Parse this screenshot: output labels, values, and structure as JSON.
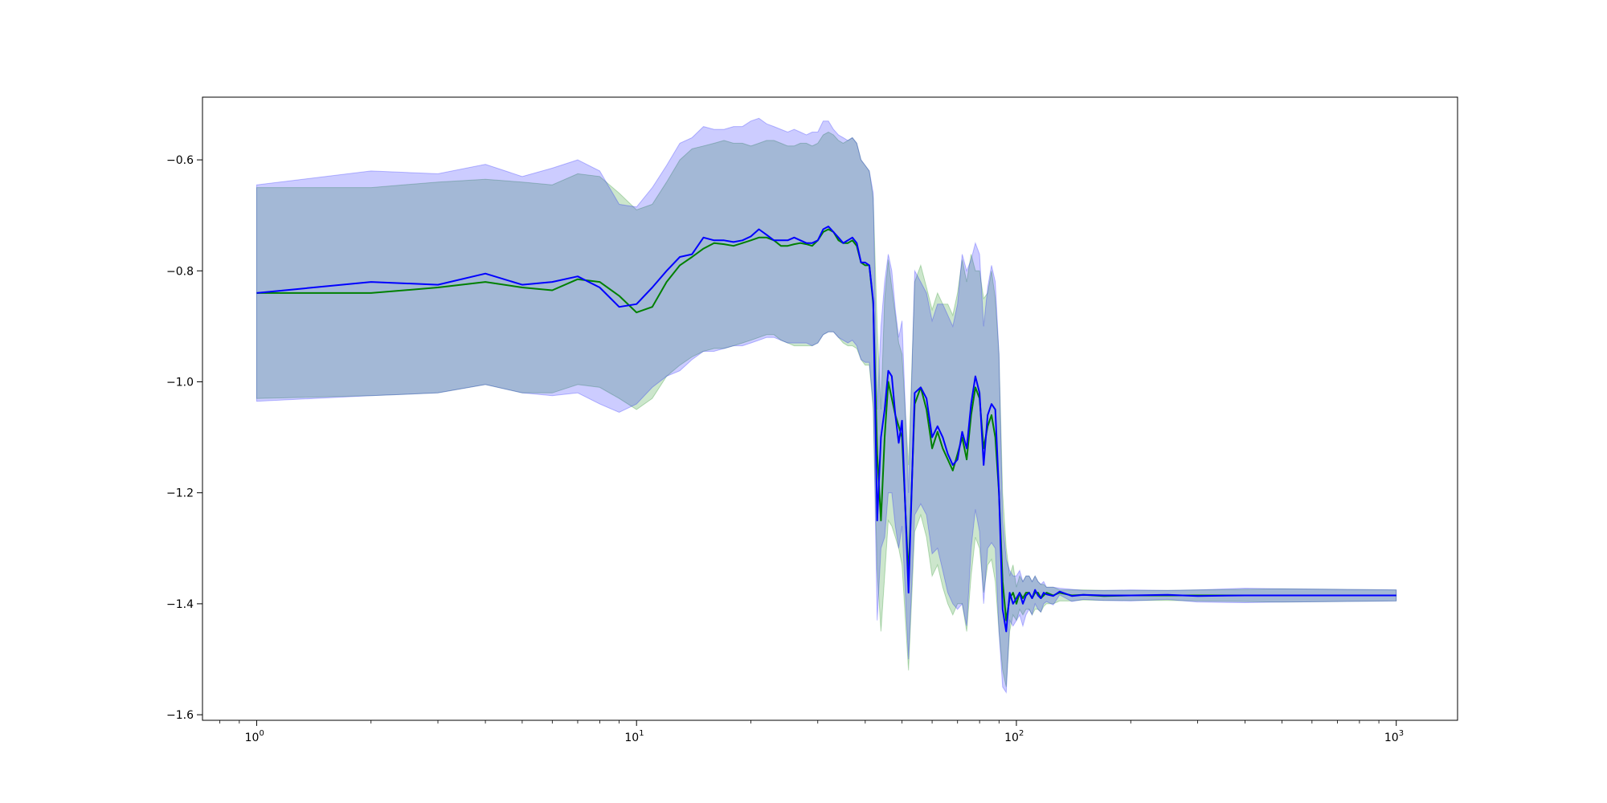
{
  "chart_data": {
    "type": "line",
    "title": "",
    "xlabel": "",
    "ylabel": "",
    "xscale": "log",
    "xlim": [
      0.72,
      1450
    ],
    "ylim": [
      -1.61,
      -0.487
    ],
    "grid": false,
    "legend": "none",
    "x_tick_labels": [
      {
        "value": 1,
        "base": "10",
        "exp": "0"
      },
      {
        "value": 10,
        "base": "10",
        "exp": "1"
      },
      {
        "value": 100,
        "base": "10",
        "exp": "2"
      },
      {
        "value": 1000,
        "base": "10",
        "exp": "3"
      }
    ],
    "y_ticks": [
      -0.6,
      -0.8,
      -1.0,
      -1.2,
      -1.4,
      -1.6
    ],
    "y_tick_labels": [
      "−0.6",
      "−0.8",
      "−1.0",
      "−1.2",
      "−1.4",
      "−1.6"
    ],
    "colors": {
      "series_a_line": "#008000",
      "series_a_band": "#008000",
      "series_b_line": "#0000ff",
      "series_b_band": "#0000ff"
    },
    "series": [
      {
        "color": "green",
        "x": [
          1,
          2,
          3,
          4,
          5,
          6,
          7,
          8,
          9,
          10,
          11,
          12,
          13,
          14,
          15,
          16,
          17,
          18,
          19,
          20,
          21,
          22,
          23,
          24,
          25,
          26,
          27,
          28,
          29,
          30,
          31,
          32,
          33,
          34,
          35,
          36,
          37,
          38,
          39,
          40,
          41,
          42,
          43,
          44,
          45,
          46,
          47,
          48,
          49,
          50,
          52,
          54,
          56,
          58,
          60,
          62,
          64,
          66,
          68,
          70,
          72,
          74,
          76,
          78,
          80,
          82,
          84,
          86,
          88,
          90,
          92,
          94,
          96,
          98,
          100,
          102,
          104,
          106,
          108,
          110,
          112,
          114,
          116,
          118,
          120,
          125,
          130,
          140,
          150,
          170,
          200,
          250,
          300,
          400,
          500,
          700,
          1000
        ],
        "y": [
          -0.84,
          -0.84,
          -0.83,
          -0.82,
          -0.83,
          -0.835,
          -0.815,
          -0.82,
          -0.845,
          -0.875,
          -0.865,
          -0.82,
          -0.79,
          -0.775,
          -0.76,
          -0.75,
          -0.752,
          -0.755,
          -0.75,
          -0.745,
          -0.74,
          -0.74,
          -0.745,
          -0.755,
          -0.755,
          -0.752,
          -0.75,
          -0.752,
          -0.755,
          -0.745,
          -0.73,
          -0.725,
          -0.73,
          -0.745,
          -0.75,
          -0.75,
          -0.745,
          -0.755,
          -0.785,
          -0.79,
          -0.79,
          -0.86,
          -1.13,
          -1.25,
          -1.1,
          -1.0,
          -1.03,
          -1.06,
          -1.08,
          -1.1,
          -1.35,
          -1.04,
          -1.01,
          -1.05,
          -1.12,
          -1.09,
          -1.12,
          -1.14,
          -1.16,
          -1.13,
          -1.1,
          -1.14,
          -1.06,
          -1.01,
          -1.03,
          -1.12,
          -1.08,
          -1.06,
          -1.1,
          -1.2,
          -1.36,
          -1.43,
          -1.39,
          -1.38,
          -1.4,
          -1.38,
          -1.39,
          -1.38,
          -1.38,
          -1.39,
          -1.38,
          -1.38,
          -1.39,
          -1.385,
          -1.38,
          -1.385,
          -1.38,
          -1.385,
          -1.384,
          -1.386,
          -1.385,
          -1.385,
          -1.385,
          -1.385,
          -1.385,
          -1.385,
          -1.385
        ],
        "y_upper": [
          -0.65,
          -0.65,
          -0.64,
          -0.635,
          -0.64,
          -0.645,
          -0.625,
          -0.63,
          -0.66,
          -0.69,
          -0.68,
          -0.64,
          -0.6,
          -0.58,
          -0.575,
          -0.57,
          -0.565,
          -0.57,
          -0.57,
          -0.575,
          -0.57,
          -0.565,
          -0.565,
          -0.57,
          -0.575,
          -0.575,
          -0.57,
          -0.57,
          -0.575,
          -0.57,
          -0.555,
          -0.55,
          -0.555,
          -0.565,
          -0.57,
          -0.565,
          -0.56,
          -0.57,
          -0.6,
          -0.61,
          -0.62,
          -0.67,
          -0.9,
          -1.05,
          -0.85,
          -0.78,
          -0.83,
          -0.88,
          -0.93,
          -0.95,
          -1.15,
          -0.82,
          -0.79,
          -0.83,
          -0.87,
          -0.84,
          -0.86,
          -0.86,
          -0.88,
          -0.84,
          -0.78,
          -0.82,
          -0.77,
          -0.8,
          -0.8,
          -0.85,
          -0.84,
          -0.8,
          -0.85,
          -0.95,
          -1.2,
          -1.3,
          -1.35,
          -1.33,
          -1.37,
          -1.35,
          -1.36,
          -1.35,
          -1.35,
          -1.36,
          -1.35,
          -1.36,
          -1.365,
          -1.365,
          -1.37,
          -1.37,
          -1.375,
          -1.375,
          -1.375,
          -1.376,
          -1.376,
          -1.376,
          -1.375,
          -1.374,
          -1.373,
          -1.374,
          -1.375
        ],
        "y_lower": [
          -1.03,
          -1.025,
          -1.02,
          -1.005,
          -1.02,
          -1.02,
          -1.005,
          -1.01,
          -1.03,
          -1.05,
          -1.03,
          -0.99,
          -0.97,
          -0.955,
          -0.945,
          -0.94,
          -0.94,
          -0.935,
          -0.93,
          -0.925,
          -0.92,
          -0.915,
          -0.915,
          -0.925,
          -0.93,
          -0.935,
          -0.935,
          -0.935,
          -0.935,
          -0.93,
          -0.915,
          -0.91,
          -0.91,
          -0.92,
          -0.93,
          -0.935,
          -0.935,
          -0.94,
          -0.96,
          -0.97,
          -0.97,
          -1.05,
          -1.34,
          -1.45,
          -1.35,
          -1.25,
          -1.26,
          -1.28,
          -1.3,
          -1.33,
          -1.52,
          -1.27,
          -1.24,
          -1.28,
          -1.35,
          -1.33,
          -1.37,
          -1.4,
          -1.42,
          -1.4,
          -1.4,
          -1.45,
          -1.35,
          -1.28,
          -1.3,
          -1.38,
          -1.33,
          -1.32,
          -1.36,
          -1.45,
          -1.52,
          -1.55,
          -1.45,
          -1.42,
          -1.43,
          -1.41,
          -1.42,
          -1.41,
          -1.41,
          -1.42,
          -1.41,
          -1.41,
          -1.415,
          -1.405,
          -1.4,
          -1.4,
          -1.395,
          -1.395,
          -1.393,
          -1.394,
          -1.394,
          -1.394,
          -1.395,
          -1.396,
          -1.397,
          -1.396,
          -1.395
        ]
      },
      {
        "color": "blue",
        "x": [
          1,
          2,
          3,
          4,
          5,
          6,
          7,
          8,
          9,
          10,
          11,
          12,
          13,
          14,
          15,
          16,
          17,
          18,
          19,
          20,
          21,
          22,
          23,
          24,
          25,
          26,
          27,
          28,
          29,
          30,
          31,
          32,
          33,
          34,
          35,
          36,
          37,
          38,
          39,
          40,
          41,
          42,
          43,
          44,
          45,
          46,
          47,
          48,
          49,
          50,
          52,
          54,
          56,
          58,
          60,
          62,
          64,
          66,
          68,
          70,
          72,
          74,
          76,
          78,
          80,
          82,
          84,
          86,
          88,
          90,
          92,
          94,
          96,
          98,
          100,
          102,
          104,
          106,
          108,
          110,
          112,
          114,
          116,
          118,
          120,
          125,
          130,
          140,
          150,
          170,
          200,
          250,
          300,
          400,
          500,
          700,
          1000
        ],
        "y": [
          -0.84,
          -0.82,
          -0.825,
          -0.805,
          -0.825,
          -0.82,
          -0.81,
          -0.83,
          -0.865,
          -0.86,
          -0.83,
          -0.8,
          -0.775,
          -0.77,
          -0.74,
          -0.745,
          -0.745,
          -0.748,
          -0.745,
          -0.738,
          -0.725,
          -0.735,
          -0.745,
          -0.745,
          -0.745,
          -0.74,
          -0.745,
          -0.75,
          -0.75,
          -0.745,
          -0.725,
          -0.72,
          -0.73,
          -0.74,
          -0.75,
          -0.745,
          -0.74,
          -0.75,
          -0.785,
          -0.785,
          -0.79,
          -0.855,
          -1.25,
          -1.1,
          -1.05,
          -0.98,
          -0.99,
          -1.06,
          -1.11,
          -1.07,
          -1.38,
          -1.02,
          -1.01,
          -1.03,
          -1.1,
          -1.08,
          -1.1,
          -1.13,
          -1.15,
          -1.14,
          -1.09,
          -1.12,
          -1.04,
          -0.99,
          -1.02,
          -1.15,
          -1.06,
          -1.04,
          -1.05,
          -1.2,
          -1.41,
          -1.45,
          -1.38,
          -1.4,
          -1.39,
          -1.38,
          -1.4,
          -1.385,
          -1.38,
          -1.39,
          -1.375,
          -1.385,
          -1.39,
          -1.38,
          -1.383,
          -1.386,
          -1.378,
          -1.386,
          -1.384,
          -1.385,
          -1.385,
          -1.384,
          -1.386,
          -1.385,
          -1.385,
          -1.385,
          -1.385
        ],
        "y_upper": [
          -0.645,
          -0.62,
          -0.625,
          -0.608,
          -0.63,
          -0.615,
          -0.6,
          -0.62,
          -0.68,
          -0.685,
          -0.65,
          -0.61,
          -0.57,
          -0.56,
          -0.54,
          -0.545,
          -0.545,
          -0.54,
          -0.54,
          -0.53,
          -0.525,
          -0.535,
          -0.54,
          -0.545,
          -0.55,
          -0.545,
          -0.55,
          -0.555,
          -0.55,
          -0.55,
          -0.53,
          -0.53,
          -0.545,
          -0.555,
          -0.56,
          -0.565,
          -0.56,
          -0.57,
          -0.6,
          -0.61,
          -0.62,
          -0.66,
          -1.05,
          -0.9,
          -0.82,
          -0.77,
          -0.8,
          -0.87,
          -0.92,
          -0.89,
          -1.2,
          -0.8,
          -0.82,
          -0.84,
          -0.89,
          -0.86,
          -0.86,
          -0.88,
          -0.9,
          -0.86,
          -0.77,
          -0.8,
          -0.78,
          -0.75,
          -0.77,
          -0.9,
          -0.83,
          -0.79,
          -0.82,
          -0.95,
          -1.25,
          -1.32,
          -1.34,
          -1.35,
          -1.35,
          -1.34,
          -1.36,
          -1.35,
          -1.35,
          -1.36,
          -1.35,
          -1.36,
          -1.365,
          -1.36,
          -1.37,
          -1.37,
          -1.372,
          -1.374,
          -1.376,
          -1.376,
          -1.375,
          -1.376,
          -1.375,
          -1.372,
          -1.373,
          -1.374,
          -1.375
        ],
        "y_lower": [
          -1.035,
          -1.025,
          -1.02,
          -1.005,
          -1.02,
          -1.025,
          -1.02,
          -1.04,
          -1.055,
          -1.04,
          -1.01,
          -0.99,
          -0.98,
          -0.96,
          -0.945,
          -0.945,
          -0.94,
          -0.935,
          -0.935,
          -0.93,
          -0.925,
          -0.92,
          -0.92,
          -0.925,
          -0.93,
          -0.93,
          -0.93,
          -0.93,
          -0.935,
          -0.93,
          -0.915,
          -0.91,
          -0.91,
          -0.92,
          -0.925,
          -0.93,
          -0.925,
          -0.935,
          -0.96,
          -0.965,
          -0.965,
          -1.04,
          -1.43,
          -1.3,
          -1.28,
          -1.2,
          -1.2,
          -1.26,
          -1.3,
          -1.26,
          -1.5,
          -1.24,
          -1.22,
          -1.24,
          -1.31,
          -1.3,
          -1.34,
          -1.38,
          -1.4,
          -1.41,
          -1.4,
          -1.44,
          -1.3,
          -1.23,
          -1.27,
          -1.4,
          -1.3,
          -1.29,
          -1.3,
          -1.45,
          -1.55,
          -1.56,
          -1.43,
          -1.44,
          -1.43,
          -1.42,
          -1.44,
          -1.42,
          -1.41,
          -1.42,
          -1.4,
          -1.41,
          -1.415,
          -1.4,
          -1.396,
          -1.402,
          -1.384,
          -1.396,
          -1.392,
          -1.394,
          -1.395,
          -1.392,
          -1.397,
          -1.398,
          -1.397,
          -1.396,
          -1.395
        ]
      }
    ]
  }
}
